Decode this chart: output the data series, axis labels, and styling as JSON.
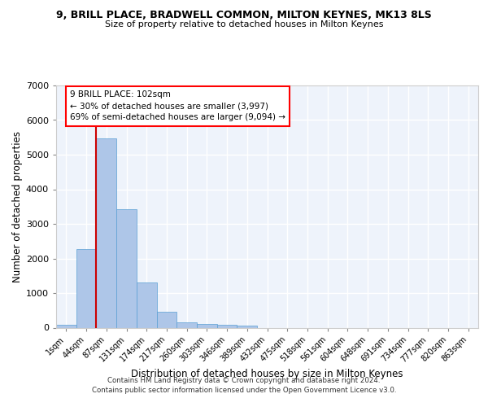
{
  "title_line1": "9, BRILL PLACE, BRADWELL COMMON, MILTON KEYNES, MK13 8LS",
  "title_line2": "Size of property relative to detached houses in Milton Keynes",
  "xlabel": "Distribution of detached houses by size in Milton Keynes",
  "ylabel": "Number of detached properties",
  "bar_color": "#aec6e8",
  "bar_edge_color": "#5a9fd4",
  "categories": [
    "1sqm",
    "44sqm",
    "87sqm",
    "131sqm",
    "174sqm",
    "217sqm",
    "260sqm",
    "303sqm",
    "346sqm",
    "389sqm",
    "432sqm",
    "475sqm",
    "518sqm",
    "561sqm",
    "604sqm",
    "648sqm",
    "691sqm",
    "734sqm",
    "777sqm",
    "820sqm",
    "863sqm"
  ],
  "values": [
    80,
    2280,
    5470,
    3430,
    1310,
    460,
    160,
    110,
    75,
    50,
    0,
    0,
    0,
    0,
    0,
    0,
    0,
    0,
    0,
    0,
    0
  ],
  "ylim": [
    0,
    7000
  ],
  "yticks": [
    0,
    1000,
    2000,
    3000,
    4000,
    5000,
    6000,
    7000
  ],
  "vline_x_index": 2,
  "vline_color": "#cc0000",
  "annotation_text": "9 BRILL PLACE: 102sqm\n← 30% of detached houses are smaller (3,997)\n69% of semi-detached houses are larger (9,094) →",
  "footer_line1": "Contains HM Land Registry data © Crown copyright and database right 2024.",
  "footer_line2": "Contains public sector information licensed under the Open Government Licence v3.0.",
  "background_color": "#eef3fb",
  "grid_color": "#ffffff",
  "figure_bg": "#ffffff"
}
